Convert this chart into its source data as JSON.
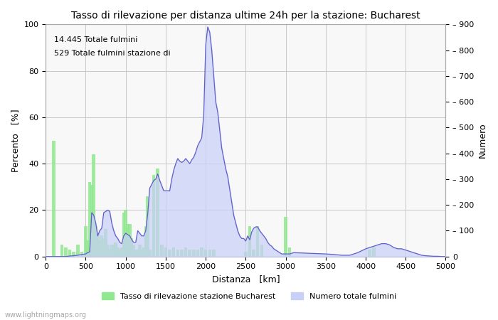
{
  "title": "Tasso di rilevazione per distanza ultime 24h per la stazione: Bucharest",
  "xlabel": "Distanza   [km]",
  "ylabel_left": "Percento   [%]",
  "ylabel_right": "Numero",
  "annotation_line1": "14.445 Totale fulmini",
  "annotation_line2": "529 Totale fulmini stazione di",
  "xlim": [
    0,
    5000
  ],
  "ylim_left": [
    0,
    100
  ],
  "ylim_right": [
    0,
    900
  ],
  "xticks": [
    0,
    500,
    1000,
    1500,
    2000,
    2500,
    3000,
    3500,
    4000,
    4500,
    5000
  ],
  "yticks_left": [
    0,
    20,
    40,
    60,
    80,
    100
  ],
  "yticks_right": [
    0,
    100,
    200,
    300,
    400,
    500,
    600,
    700,
    800,
    900
  ],
  "legend_label_green": "Tasso di rilevazione stazione Bucharest",
  "legend_label_blue": "Numero totale fulmini",
  "watermark": "www.lightningmaps.org",
  "bar_color": "#90e890",
  "fill_color": "#c8d0f8",
  "line_color": "#6060c8",
  "background_color": "#f8f8f8",
  "grid_color": "#c8c8c8",
  "green_bars": [
    [
      100,
      50
    ],
    [
      200,
      5
    ],
    [
      250,
      4
    ],
    [
      300,
      3
    ],
    [
      350,
      2
    ],
    [
      400,
      5
    ],
    [
      450,
      2
    ],
    [
      500,
      13
    ],
    [
      525,
      7
    ],
    [
      550,
      32
    ],
    [
      575,
      31
    ],
    [
      600,
      44
    ],
    [
      625,
      13
    ],
    [
      650,
      10
    ],
    [
      675,
      7
    ],
    [
      700,
      9
    ],
    [
      725,
      8
    ],
    [
      750,
      12
    ],
    [
      775,
      5
    ],
    [
      800,
      3
    ],
    [
      825,
      5
    ],
    [
      850,
      5
    ],
    [
      875,
      6
    ],
    [
      900,
      4
    ],
    [
      925,
      3
    ],
    [
      950,
      4
    ],
    [
      975,
      19
    ],
    [
      1000,
      20
    ],
    [
      1025,
      14
    ],
    [
      1050,
      14
    ],
    [
      1075,
      8
    ],
    [
      1100,
      5
    ],
    [
      1125,
      3
    ],
    [
      1150,
      3
    ],
    [
      1175,
      5
    ],
    [
      1200,
      3
    ],
    [
      1225,
      4
    ],
    [
      1250,
      13
    ],
    [
      1275,
      26
    ],
    [
      1300,
      3
    ],
    [
      1350,
      35
    ],
    [
      1400,
      38
    ],
    [
      1450,
      5
    ],
    [
      1500,
      4
    ],
    [
      1550,
      3
    ],
    [
      1600,
      4
    ],
    [
      1650,
      3
    ],
    [
      1700,
      3
    ],
    [
      1750,
      4
    ],
    [
      1800,
      3
    ],
    [
      1850,
      3
    ],
    [
      1900,
      3
    ],
    [
      1950,
      4
    ],
    [
      2000,
      3
    ],
    [
      2050,
      3
    ],
    [
      2100,
      3
    ],
    [
      2500,
      2
    ],
    [
      2550,
      13
    ],
    [
      2600,
      3
    ],
    [
      2650,
      13
    ],
    [
      2700,
      5
    ],
    [
      3000,
      17
    ],
    [
      3050,
      4
    ],
    [
      4050,
      3
    ],
    [
      4100,
      4
    ]
  ],
  "blue_curve_x": [
    0,
    50,
    100,
    150,
    200,
    250,
    300,
    350,
    400,
    450,
    500,
    525,
    550,
    575,
    600,
    625,
    650,
    675,
    700,
    725,
    750,
    775,
    800,
    825,
    850,
    875,
    900,
    925,
    950,
    975,
    1000,
    1025,
    1050,
    1075,
    1100,
    1125,
    1150,
    1175,
    1200,
    1225,
    1250,
    1275,
    1300,
    1325,
    1350,
    1375,
    1400,
    1425,
    1450,
    1475,
    1500,
    1525,
    1550,
    1575,
    1600,
    1625,
    1650,
    1675,
    1700,
    1725,
    1750,
    1775,
    1800,
    1825,
    1850,
    1875,
    1900,
    1925,
    1950,
    1975,
    2000,
    2025,
    2050,
    2075,
    2100,
    2125,
    2150,
    2175,
    2200,
    2225,
    2250,
    2275,
    2300,
    2325,
    2350,
    2375,
    2400,
    2425,
    2450,
    2475,
    2500,
    2525,
    2550,
    2575,
    2600,
    2625,
    2650,
    2675,
    2700,
    2725,
    2750,
    2775,
    2800,
    2825,
    2850,
    2875,
    2900,
    2950,
    3000,
    3050,
    3100,
    3500,
    3600,
    3700,
    3800,
    3900,
    4000,
    4050,
    4100,
    4150,
    4200,
    4250,
    4300,
    4350,
    4400,
    4450,
    4500,
    4550,
    4600,
    4650,
    4700,
    4750,
    4800,
    4850,
    4900,
    4950,
    5000
  ],
  "blue_curve_y": [
    0,
    0,
    0,
    0,
    0,
    0,
    2,
    3,
    5,
    8,
    10,
    15,
    18,
    170,
    160,
    130,
    80,
    100,
    110,
    170,
    175,
    180,
    175,
    130,
    100,
    80,
    70,
    55,
    50,
    80,
    90,
    85,
    80,
    65,
    55,
    55,
    100,
    90,
    80,
    80,
    100,
    165,
    265,
    280,
    295,
    300,
    320,
    295,
    275,
    255,
    255,
    255,
    255,
    300,
    335,
    360,
    380,
    370,
    365,
    370,
    380,
    370,
    360,
    375,
    385,
    405,
    430,
    445,
    460,
    550,
    820,
    890,
    870,
    800,
    700,
    600,
    560,
    490,
    420,
    380,
    340,
    310,
    260,
    210,
    160,
    130,
    100,
    80,
    70,
    70,
    60,
    80,
    65,
    95,
    110,
    115,
    115,
    100,
    90,
    80,
    70,
    55,
    45,
    40,
    30,
    25,
    20,
    10,
    10,
    10,
    15,
    10,
    8,
    5,
    5,
    15,
    30,
    35,
    40,
    45,
    50,
    50,
    45,
    35,
    30,
    30,
    25,
    20,
    15,
    10,
    5,
    3,
    2,
    1,
    1,
    0,
    0
  ]
}
